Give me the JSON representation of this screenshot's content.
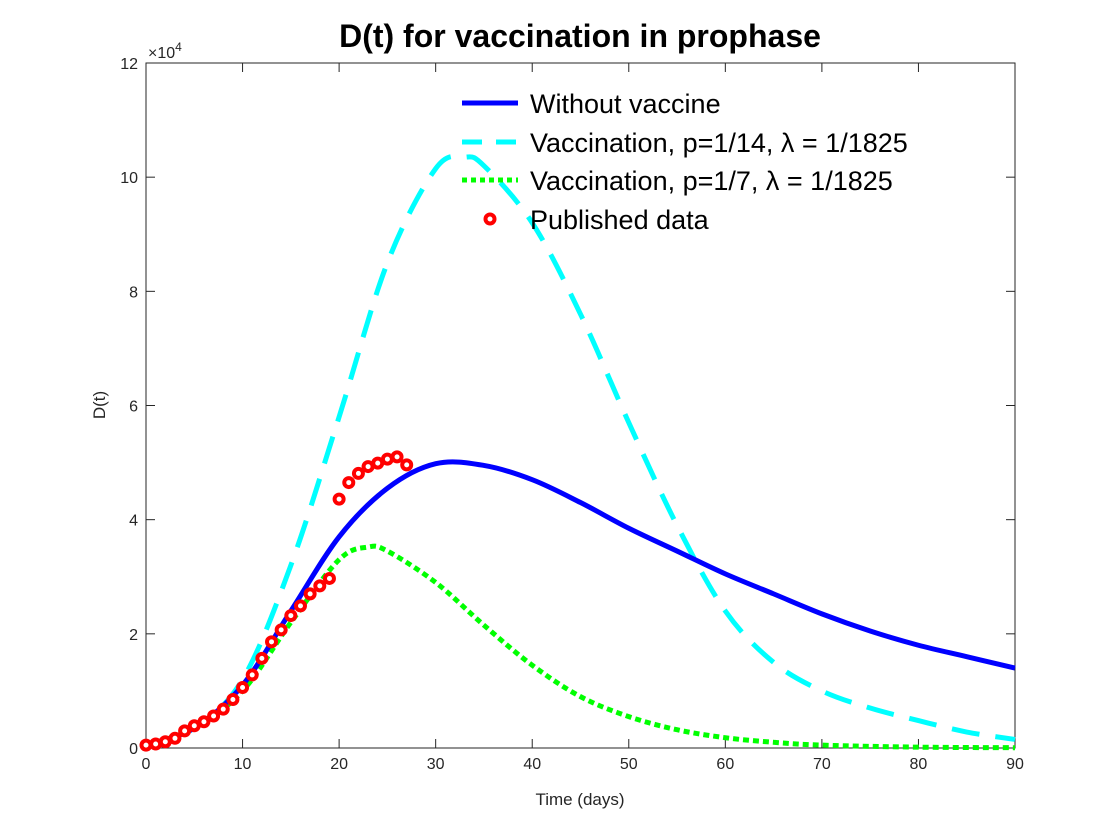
{
  "chart_data": {
    "type": "line",
    "title": "D(t) for vaccination in prophase",
    "xlabel": "Time (days)",
    "ylabel": "D(t)",
    "xlim": [
      0,
      90
    ],
    "ylim": [
      0,
      120000
    ],
    "y_exponent_label": "×10",
    "y_exponent_power": "4",
    "xticks": [
      0,
      10,
      20,
      30,
      40,
      50,
      60,
      70,
      80,
      90
    ],
    "xtick_labels": [
      "0",
      "10",
      "20",
      "30",
      "40",
      "50",
      "60",
      "70",
      "80",
      "90"
    ],
    "yticks": [
      0,
      20000,
      40000,
      60000,
      80000,
      100000,
      120000
    ],
    "ytick_labels": [
      "0",
      "2",
      "4",
      "6",
      "8",
      "10",
      "12"
    ],
    "grid": false,
    "legend_placement": "top-right",
    "series": [
      {
        "name": "Without vaccine",
        "color": "#0000ff",
        "style": "solid",
        "x": [
          0,
          5,
          10,
          15,
          20,
          25,
          30,
          35,
          40,
          45,
          50,
          55,
          60,
          65,
          70,
          75,
          80,
          85,
          90
        ],
        "y": [
          500,
          3500,
          11000,
          24000,
          37000,
          45500,
          49800,
          49500,
          47000,
          43000,
          38500,
          34500,
          30500,
          27000,
          23500,
          20500,
          18000,
          16000,
          14000
        ]
      },
      {
        "name": "Vaccination, p=1/14, λ = 1/1825",
        "color": "#00ffff",
        "style": "dashed",
        "x": [
          0,
          5,
          10,
          15,
          20,
          25,
          30,
          33,
          35,
          40,
          45,
          50,
          55,
          60,
          65,
          70,
          75,
          80,
          85,
          90
        ],
        "y": [
          500,
          3500,
          12000,
          32000,
          58000,
          85000,
          101500,
          103500,
          102000,
          92000,
          76000,
          57000,
          39000,
          24000,
          15000,
          10000,
          7000,
          4800,
          2800,
          1500
        ]
      },
      {
        "name": "Vaccination, p=1/7, λ = 1/1825",
        "color": "#00ff00",
        "style": "dotted",
        "x": [
          0,
          5,
          10,
          15,
          20,
          23,
          25,
          30,
          35,
          40,
          45,
          50,
          55,
          60,
          65,
          70,
          80,
          90
        ],
        "y": [
          500,
          3500,
          10000,
          22000,
          33000,
          35200,
          34500,
          29000,
          21500,
          14500,
          9000,
          5500,
          3200,
          1800,
          1000,
          500,
          150,
          50
        ]
      },
      {
        "name": "Published data",
        "color": "#ff0000",
        "style": "markers",
        "x": [
          0,
          1,
          2,
          3,
          4,
          5,
          6,
          7,
          8,
          9,
          10,
          11,
          12,
          13,
          14,
          15,
          16,
          17,
          18,
          19,
          20,
          21,
          22,
          23,
          24,
          25,
          26,
          27
        ],
        "y": [
          500,
          700,
          1100,
          1700,
          3000,
          3900,
          4600,
          5600,
          6800,
          8500,
          10600,
          12800,
          15700,
          18600,
          20700,
          23200,
          24900,
          27000,
          28400,
          29700,
          43600,
          46500,
          48100,
          49300,
          49900,
          50600,
          51000,
          49600
        ]
      }
    ]
  }
}
